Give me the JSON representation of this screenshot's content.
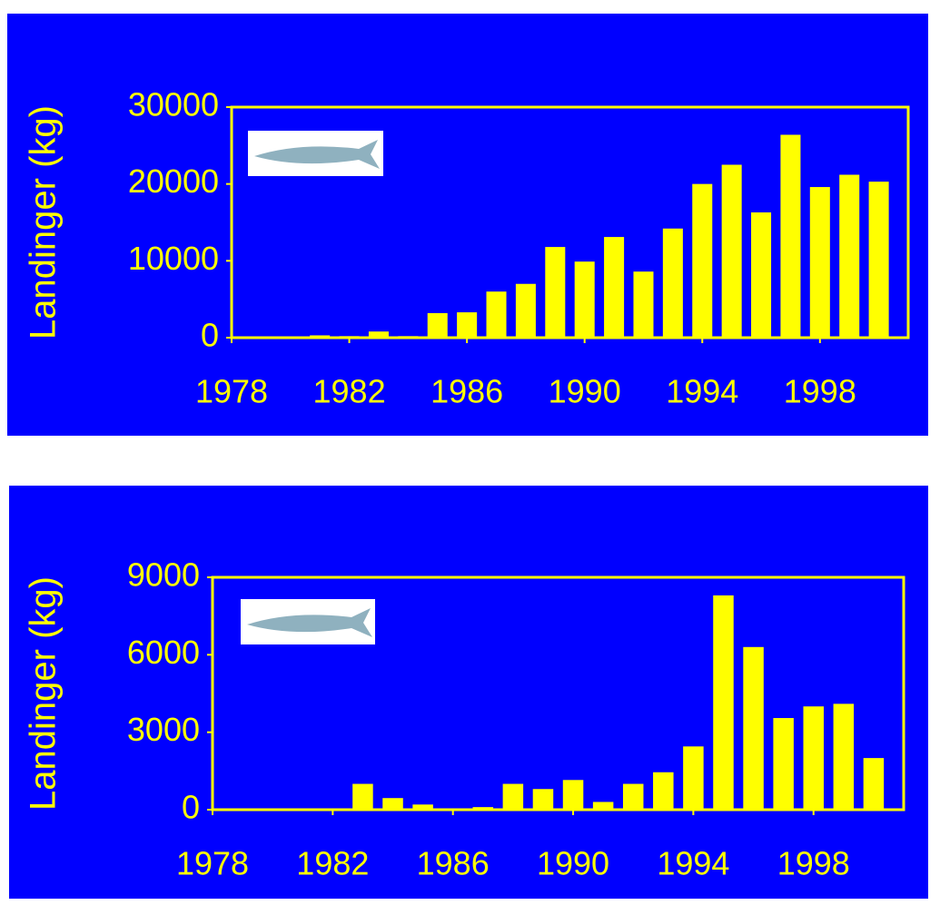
{
  "chart_data": [
    {
      "type": "bar",
      "y_label": "Landinger (kg)",
      "color": "#ffff00",
      "x": [
        1978,
        1979,
        1980,
        1981,
        1982,
        1983,
        1984,
        1985,
        1986,
        1987,
        1988,
        1989,
        1990,
        1991,
        1992,
        1993,
        1994,
        1995,
        1996,
        1997,
        1998,
        1999,
        2000
      ],
      "values": [
        0,
        0,
        0,
        300,
        200,
        800,
        200,
        3200,
        3300,
        6000,
        7000,
        11800,
        9900,
        13100,
        8600,
        14200,
        20000,
        22500,
        16300,
        26400,
        19600,
        21200,
        20300
      ],
      "xlim": [
        1978,
        2001
      ],
      "xticks": [
        1978,
        1982,
        1986,
        1990,
        1994,
        1998
      ],
      "ylim": [
        0,
        30000
      ],
      "yticks": [
        0,
        10000,
        20000,
        30000
      ]
    },
    {
      "type": "bar",
      "y_label": "Landinger (kg)",
      "color": "#ffff00",
      "x": [
        1978,
        1979,
        1980,
        1981,
        1982,
        1983,
        1984,
        1985,
        1986,
        1987,
        1988,
        1989,
        1990,
        1991,
        1992,
        1993,
        1994,
        1995,
        1996,
        1997,
        1998,
        1999,
        2000
      ],
      "values": [
        0,
        0,
        0,
        0,
        0,
        1000,
        450,
        200,
        50,
        100,
        1000,
        800,
        1150,
        300,
        1000,
        1450,
        2450,
        8300,
        6300,
        3550,
        4000,
        4100,
        2000
      ],
      "xlim": [
        1978,
        2001
      ],
      "xticks": [
        1978,
        1982,
        1986,
        1990,
        1994,
        1998
      ],
      "ylim": [
        0,
        9000
      ],
      "yticks": [
        0,
        3000,
        6000,
        9000
      ]
    }
  ]
}
